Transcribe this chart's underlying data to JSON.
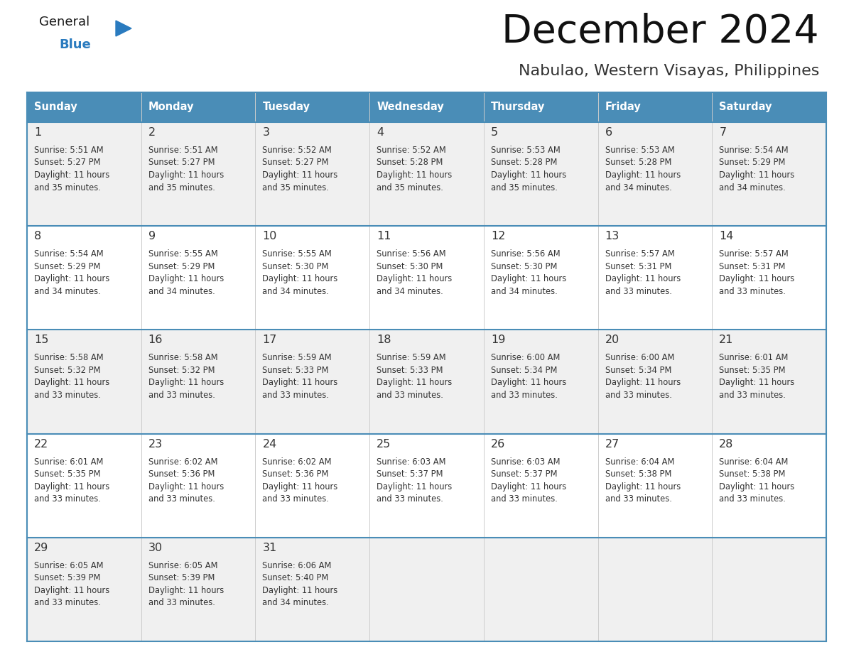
{
  "title": "December 2024",
  "subtitle": "Nabulao, Western Visayas, Philippines",
  "days_of_week": [
    "Sunday",
    "Monday",
    "Tuesday",
    "Wednesday",
    "Thursday",
    "Friday",
    "Saturday"
  ],
  "header_bg": "#4a8db7",
  "header_text_color": "#ffffff",
  "cell_bg_row0": "#f0f0f0",
  "cell_bg_row1": "#ffffff",
  "cell_bg_row2": "#f0f0f0",
  "cell_bg_row3": "#ffffff",
  "cell_bg_row4": "#f0f0f0",
  "row_line_color": "#4a8db7",
  "grid_line_color": "#cccccc",
  "text_color": "#333333",
  "logo_general_color": "#1a1a1a",
  "logo_blue_color": "#2a7bbf",
  "calendar_data": [
    {
      "day": 1,
      "week": 0,
      "dow": 0,
      "sunrise": "5:51 AM",
      "sunset": "5:27 PM",
      "daylight": "11 hours and 35 minutes."
    },
    {
      "day": 2,
      "week": 0,
      "dow": 1,
      "sunrise": "5:51 AM",
      "sunset": "5:27 PM",
      "daylight": "11 hours and 35 minutes."
    },
    {
      "day": 3,
      "week": 0,
      "dow": 2,
      "sunrise": "5:52 AM",
      "sunset": "5:27 PM",
      "daylight": "11 hours and 35 minutes."
    },
    {
      "day": 4,
      "week": 0,
      "dow": 3,
      "sunrise": "5:52 AM",
      "sunset": "5:28 PM",
      "daylight": "11 hours and 35 minutes."
    },
    {
      "day": 5,
      "week": 0,
      "dow": 4,
      "sunrise": "5:53 AM",
      "sunset": "5:28 PM",
      "daylight": "11 hours and 35 minutes."
    },
    {
      "day": 6,
      "week": 0,
      "dow": 5,
      "sunrise": "5:53 AM",
      "sunset": "5:28 PM",
      "daylight": "11 hours and 34 minutes."
    },
    {
      "day": 7,
      "week": 0,
      "dow": 6,
      "sunrise": "5:54 AM",
      "sunset": "5:29 PM",
      "daylight": "11 hours and 34 minutes."
    },
    {
      "day": 8,
      "week": 1,
      "dow": 0,
      "sunrise": "5:54 AM",
      "sunset": "5:29 PM",
      "daylight": "11 hours and 34 minutes."
    },
    {
      "day": 9,
      "week": 1,
      "dow": 1,
      "sunrise": "5:55 AM",
      "sunset": "5:29 PM",
      "daylight": "11 hours and 34 minutes."
    },
    {
      "day": 10,
      "week": 1,
      "dow": 2,
      "sunrise": "5:55 AM",
      "sunset": "5:30 PM",
      "daylight": "11 hours and 34 minutes."
    },
    {
      "day": 11,
      "week": 1,
      "dow": 3,
      "sunrise": "5:56 AM",
      "sunset": "5:30 PM",
      "daylight": "11 hours and 34 minutes."
    },
    {
      "day": 12,
      "week": 1,
      "dow": 4,
      "sunrise": "5:56 AM",
      "sunset": "5:30 PM",
      "daylight": "11 hours and 34 minutes."
    },
    {
      "day": 13,
      "week": 1,
      "dow": 5,
      "sunrise": "5:57 AM",
      "sunset": "5:31 PM",
      "daylight": "11 hours and 33 minutes."
    },
    {
      "day": 14,
      "week": 1,
      "dow": 6,
      "sunrise": "5:57 AM",
      "sunset": "5:31 PM",
      "daylight": "11 hours and 33 minutes."
    },
    {
      "day": 15,
      "week": 2,
      "dow": 0,
      "sunrise": "5:58 AM",
      "sunset": "5:32 PM",
      "daylight": "11 hours and 33 minutes."
    },
    {
      "day": 16,
      "week": 2,
      "dow": 1,
      "sunrise": "5:58 AM",
      "sunset": "5:32 PM",
      "daylight": "11 hours and 33 minutes."
    },
    {
      "day": 17,
      "week": 2,
      "dow": 2,
      "sunrise": "5:59 AM",
      "sunset": "5:33 PM",
      "daylight": "11 hours and 33 minutes."
    },
    {
      "day": 18,
      "week": 2,
      "dow": 3,
      "sunrise": "5:59 AM",
      "sunset": "5:33 PM",
      "daylight": "11 hours and 33 minutes."
    },
    {
      "day": 19,
      "week": 2,
      "dow": 4,
      "sunrise": "6:00 AM",
      "sunset": "5:34 PM",
      "daylight": "11 hours and 33 minutes."
    },
    {
      "day": 20,
      "week": 2,
      "dow": 5,
      "sunrise": "6:00 AM",
      "sunset": "5:34 PM",
      "daylight": "11 hours and 33 minutes."
    },
    {
      "day": 21,
      "week": 2,
      "dow": 6,
      "sunrise": "6:01 AM",
      "sunset": "5:35 PM",
      "daylight": "11 hours and 33 minutes."
    },
    {
      "day": 22,
      "week": 3,
      "dow": 0,
      "sunrise": "6:01 AM",
      "sunset": "5:35 PM",
      "daylight": "11 hours and 33 minutes."
    },
    {
      "day": 23,
      "week": 3,
      "dow": 1,
      "sunrise": "6:02 AM",
      "sunset": "5:36 PM",
      "daylight": "11 hours and 33 minutes."
    },
    {
      "day": 24,
      "week": 3,
      "dow": 2,
      "sunrise": "6:02 AM",
      "sunset": "5:36 PM",
      "daylight": "11 hours and 33 minutes."
    },
    {
      "day": 25,
      "week": 3,
      "dow": 3,
      "sunrise": "6:03 AM",
      "sunset": "5:37 PM",
      "daylight": "11 hours and 33 minutes."
    },
    {
      "day": 26,
      "week": 3,
      "dow": 4,
      "sunrise": "6:03 AM",
      "sunset": "5:37 PM",
      "daylight": "11 hours and 33 minutes."
    },
    {
      "day": 27,
      "week": 3,
      "dow": 5,
      "sunrise": "6:04 AM",
      "sunset": "5:38 PM",
      "daylight": "11 hours and 33 minutes."
    },
    {
      "day": 28,
      "week": 3,
      "dow": 6,
      "sunrise": "6:04 AM",
      "sunset": "5:38 PM",
      "daylight": "11 hours and 33 minutes."
    },
    {
      "day": 29,
      "week": 4,
      "dow": 0,
      "sunrise": "6:05 AM",
      "sunset": "5:39 PM",
      "daylight": "11 hours and 33 minutes."
    },
    {
      "day": 30,
      "week": 4,
      "dow": 1,
      "sunrise": "6:05 AM",
      "sunset": "5:39 PM",
      "daylight": "11 hours and 33 minutes."
    },
    {
      "day": 31,
      "week": 4,
      "dow": 2,
      "sunrise": "6:06 AM",
      "sunset": "5:40 PM",
      "daylight": "11 hours and 34 minutes."
    }
  ]
}
